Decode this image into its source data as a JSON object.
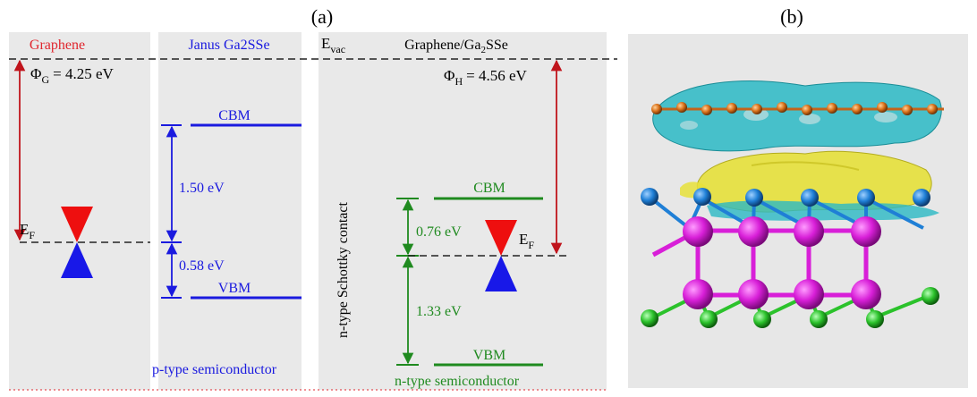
{
  "panel_labels": {
    "a": "(a)",
    "b": "(b)"
  },
  "graphene": {
    "title": "Graphene",
    "work_function_symbol": "Φ",
    "work_function_sub": "G",
    "work_function_value": "= 4.25 eV",
    "fermi_symbol": "E",
    "fermi_sub": "F"
  },
  "janus": {
    "title": "Janus Ga2SSe",
    "cbm": "CBM",
    "vbm": "VBM",
    "gap_upper": "1.50 eV",
    "gap_lower": "0.58 eV",
    "type_label": "p-type semiconductor"
  },
  "hetero": {
    "title_main": "Graphene/Ga",
    "title_sub": "2",
    "title_tail": "SSe",
    "vacuum_symbol": "E",
    "vacuum_sub": "vac",
    "work_function_symbol": "Φ",
    "work_function_sub": "H",
    "work_function_value": "= 4.56 eV",
    "cbm": "CBM",
    "vbm": "VBM",
    "gap_upper": "0.76 eV",
    "gap_lower": "1.33 eV",
    "fermi_symbol": "E",
    "fermi_sub": "F",
    "contact_label": "n-type Schottky contact",
    "type_label": "n-type semiconductor"
  },
  "colors": {
    "graphene_title": "#e0262e",
    "work_function_arrow": "#c0141c",
    "janus": "#1a1adf",
    "hetero_bands": "#1f8a1f",
    "cone_top": "#ee0f0f",
    "cone_bottom": "#1818e8",
    "panel_bg": "#e9e9e9",
    "charge_accumulation": "#e6e03a",
    "charge_depletion": "#2ab9c4",
    "carbon_atom": "#d9711a",
    "selenium_atom": "#1f7fd6",
    "gallium_atom": "#d81fd8",
    "sulfur_atom": "#2bc22b"
  }
}
